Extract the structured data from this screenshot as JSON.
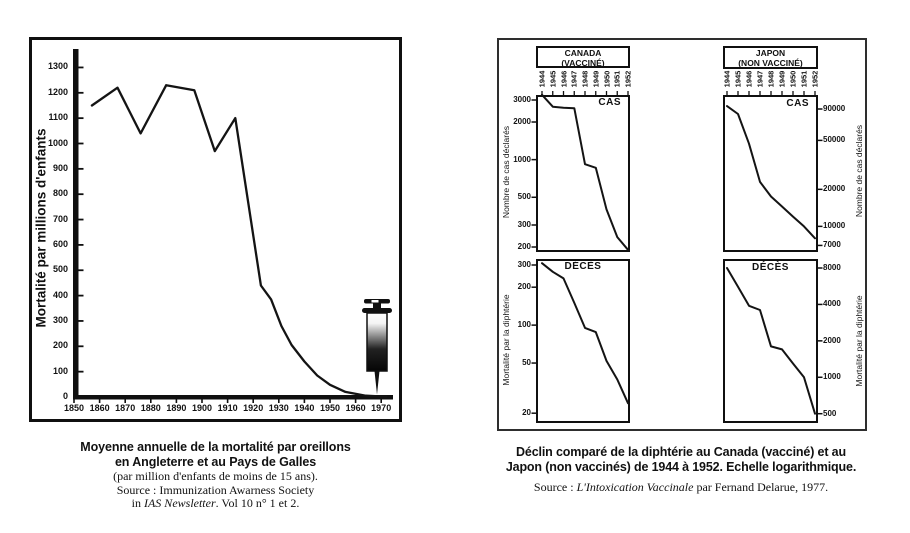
{
  "page": {
    "background": "#ffffff",
    "ink_color": "#111111"
  },
  "figure1": {
    "ylabel": "Mortalité par millions d'enfants",
    "icon": "syringe-icon",
    "caption": {
      "line1": "Moyenne annuelle de la mortalité par oreillons",
      "line2": "en Angleterre et au Pays de Galles",
      "line3": "(par million d'enfants de moins de 15 ans).",
      "line4": "Source : Immunization Awarness Society",
      "line5_prefix": "in ",
      "line5_italic": "IAS Newsletter",
      "line5_suffix": ". Vol 10 n° 1 et 2."
    }
  },
  "figure2": {
    "canada": {
      "title_line1": "CANADA",
      "title_line2": "(VACCINÉ)"
    },
    "japon": {
      "title_line1": "JAPON",
      "title_line2": "(NON VACCINÉ)"
    },
    "cas_label": "CAS",
    "deces_label": "DÉCÈS",
    "ylabel_cases": "Nombre de cas déclarés",
    "ylabel_deaths": "Mortalité par la diphtérie",
    "caption": {
      "line1": "Déclin comparé de la diphtérie au Canada (vacciné) et au",
      "line2": "Japon (non vaccinés) de 1944 à 1952. Echelle logarithmique.",
      "source_prefix": "Source : ",
      "source_italic": "L'Intoxication Vaccinale",
      "source_suffix": " par Fernand Delarue, 1977."
    }
  },
  "chart_data": [
    {
      "type": "line",
      "title": "Moyenne annuelle de la mortalité par oreillons en Angleterre et au Pays de Galles",
      "subtitle": "(par million d'enfants de moins de 15 ans)",
      "ylabel": "Mortalité par millions d'enfants",
      "xlabel": "",
      "yscale": "linear",
      "grid": false,
      "x": [
        1857,
        1867,
        1876,
        1886,
        1897,
        1905,
        1913,
        1923,
        1927,
        1931,
        1935,
        1940,
        1945,
        1950,
        1956,
        1964,
        1972
      ],
      "y": [
        1150,
        1220,
        1040,
        1230,
        1210,
        970,
        1100,
        440,
        385,
        280,
        205,
        140,
        85,
        48,
        20,
        5,
        1
      ],
      "xticks": [
        1850,
        1860,
        1870,
        1880,
        1890,
        1900,
        1910,
        1920,
        1930,
        1940,
        1950,
        1960,
        1970
      ],
      "yticks": [
        0,
        100,
        200,
        300,
        400,
        500,
        600,
        700,
        800,
        900,
        1000,
        1100,
        1200,
        1300
      ],
      "xlim": [
        1850,
        1975
      ],
      "ylim": [
        0,
        1375
      ],
      "annotation": "syringe icon placed at ~1967 on the x-axis"
    },
    {
      "type": "line",
      "name": "Canada — cas déclarés",
      "region": "CANADA (VACCINÉ)",
      "series_label": "CAS",
      "ylabel": "Nombre de cas déclarés",
      "yscale": "log",
      "axis_side": "left",
      "x": [
        1944,
        1945,
        1946,
        1947,
        1948,
        1949,
        1950,
        1951,
        1952
      ],
      "y": [
        3300,
        2650,
        2600,
        2580,
        920,
        860,
        400,
        240,
        190
      ],
      "yticks": [
        3000,
        2000,
        1000,
        500,
        300,
        200
      ],
      "ylim": [
        170,
        3400
      ]
    },
    {
      "type": "line",
      "name": "Canada — décès",
      "region": "CANADA (VACCINÉ)",
      "series_label": "DÉCÈS",
      "ylabel": "Mortalité par la diphtérie",
      "yscale": "log",
      "axis_side": "left",
      "x": [
        1944,
        1945,
        1946,
        1947,
        1948,
        1949,
        1950,
        1951,
        1952
      ],
      "y": [
        310,
        265,
        235,
        150,
        95,
        88,
        52,
        37,
        24
      ],
      "yticks": [
        300,
        200,
        100,
        50,
        20
      ],
      "ylim": [
        17,
        335
      ]
    },
    {
      "type": "line",
      "name": "Japon — cas déclarés",
      "region": "JAPON (NON VACCINÉ)",
      "series_label": "CAS",
      "ylabel": "Nombre de cas déclarés",
      "yscale": "log",
      "axis_side": "right",
      "x": [
        1944,
        1945,
        1946,
        1947,
        1948,
        1949,
        1950,
        1951,
        1952
      ],
      "y": [
        95000,
        82000,
        47000,
        23000,
        17500,
        14500,
        12000,
        10000,
        8000
      ],
      "yticks": [
        90000,
        50000,
        20000,
        10000,
        7000
      ],
      "ylim": [
        6200,
        117000
      ]
    },
    {
      "type": "line",
      "name": "Japon — décès",
      "region": "JAPON (NON VACCINÉ)",
      "series_label": "DÉCÈS",
      "ylabel": "Mortalité par la diphtérie",
      "yscale": "log",
      "axis_side": "right",
      "x": [
        1944,
        1945,
        1946,
        1947,
        1948,
        1949,
        1950,
        1951,
        1952
      ],
      "y": [
        8000,
        5600,
        3900,
        3600,
        1800,
        1700,
        1300,
        1000,
        500
      ],
      "yticks": [
        8000,
        4000,
        2000,
        1000,
        500
      ],
      "ylim": [
        420,
        9500
      ]
    }
  ]
}
